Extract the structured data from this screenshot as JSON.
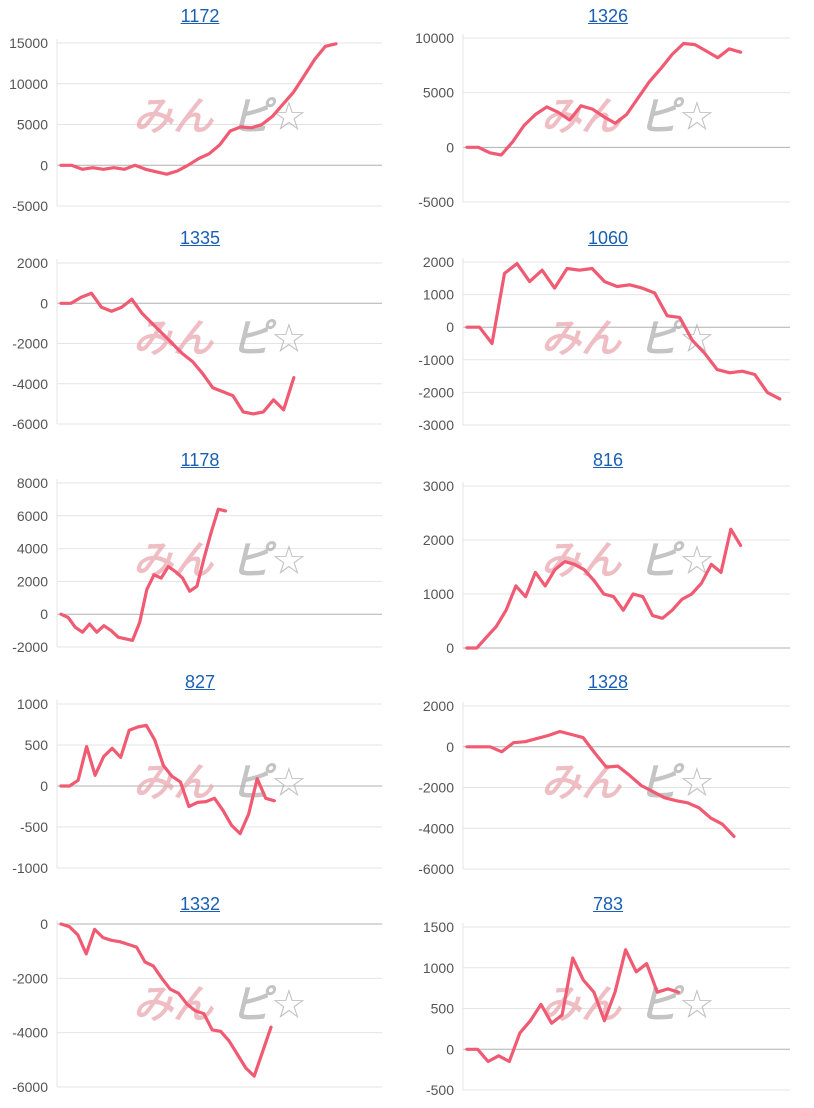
{
  "watermark_color_pink": "#e8a0a8",
  "watermark_color_gray": "#a8a8a8",
  "line_color": "#f05a72",
  "chart_data": [
    {
      "type": "line",
      "title": "1172",
      "yticks": [
        15000,
        10000,
        5000,
        0,
        -5000
      ],
      "ylim": [
        -5000,
        15000
      ],
      "values": [
        0,
        0,
        -500,
        -300,
        -500,
        -300,
        -500,
        0,
        -500,
        -800,
        -1100,
        -700,
        0,
        800,
        1400,
        2500,
        4200,
        4700,
        4600,
        5000,
        6000,
        7500,
        9000,
        11000,
        13000,
        14600,
        14900
      ]
    },
    {
      "type": "line",
      "title": "1326",
      "yticks": [
        10000,
        5000,
        0,
        -5000
      ],
      "ylim": [
        -5000,
        10000
      ],
      "values": [
        0,
        0,
        -500,
        -700,
        500,
        2000,
        3000,
        3700,
        3200,
        2500,
        3800,
        3500,
        2800,
        2200,
        3000,
        4500,
        6000,
        7200,
        8500,
        9500,
        9400,
        8800,
        8200,
        9000,
        8700
      ]
    },
    {
      "type": "line",
      "title": "1335",
      "yticks": [
        2000,
        0,
        -2000,
        -4000,
        -6000
      ],
      "ylim": [
        -6000,
        2000
      ],
      "values": [
        0,
        0,
        300,
        500,
        -200,
        -400,
        -200,
        200,
        -500,
        -1000,
        -1500,
        -2000,
        -2500,
        -2900,
        -3500,
        -4200,
        -4400,
        -4600,
        -5400,
        -5500,
        -5400,
        -4800,
        -5300,
        -3700
      ]
    },
    {
      "type": "line",
      "title": "1060",
      "yticks": [
        2000,
        1000,
        0,
        -1000,
        -2000,
        -3000
      ],
      "ylim": [
        -3000,
        2000
      ],
      "values": [
        0,
        0,
        -500,
        1650,
        1950,
        1400,
        1750,
        1200,
        1800,
        1750,
        1800,
        1400,
        1250,
        1300,
        1200,
        1050,
        350,
        300,
        -400,
        -800,
        -1300,
        -1400,
        -1350,
        -1450,
        -2000,
        -2200
      ]
    },
    {
      "type": "line",
      "title": "1178",
      "yticks": [
        8000,
        6000,
        4000,
        2000,
        0,
        -2000
      ],
      "ylim": [
        -2000,
        8000
      ],
      "values": [
        0,
        -200,
        -800,
        -1100,
        -600,
        -1100,
        -700,
        -1000,
        -1400,
        -1500,
        -1600,
        -500,
        1500,
        2400,
        2200,
        2900,
        2600,
        2200,
        1400,
        1700,
        3400,
        5000,
        6400,
        6300
      ]
    },
    {
      "type": "line",
      "title": "816",
      "yticks": [
        3000,
        2000,
        1000,
        0
      ],
      "ylim": [
        0,
        3000
      ],
      "values": [
        0,
        0,
        200,
        400,
        700,
        1150,
        950,
        1400,
        1150,
        1450,
        1600,
        1550,
        1450,
        1250,
        1000,
        950,
        700,
        1000,
        950,
        600,
        550,
        700,
        900,
        1000,
        1200,
        1550,
        1400,
        2200,
        1900
      ]
    },
    {
      "type": "line",
      "title": "827",
      "yticks": [
        1000,
        500,
        0,
        -500,
        -1000
      ],
      "ylim": [
        -1000,
        1000
      ],
      "values": [
        0,
        0,
        70,
        480,
        130,
        360,
        460,
        350,
        680,
        720,
        740,
        560,
        250,
        120,
        50,
        -250,
        -200,
        -190,
        -150,
        -300,
        -480,
        -580,
        -340,
        90,
        -150,
        -180
      ]
    },
    {
      "type": "line",
      "title": "1328",
      "yticks": [
        2000,
        0,
        -2000,
        -4000,
        -6000
      ],
      "ylim": [
        -6000,
        2000
      ],
      "values": [
        0,
        0,
        0,
        -250,
        200,
        250,
        400,
        550,
        750,
        600,
        450,
        -300,
        -1000,
        -950,
        -1400,
        -1900,
        -2200,
        -2500,
        -2650,
        -2750,
        -3000,
        -3500,
        -3800,
        -4400
      ]
    },
    {
      "type": "line",
      "title": "1332",
      "yticks": [
        0,
        -2000,
        -4000,
        -6000
      ],
      "ylim": [
        -6000,
        0
      ],
      "values": [
        0,
        -100,
        -400,
        -1100,
        -200,
        -500,
        -600,
        -650,
        -750,
        -850,
        -1400,
        -1550,
        -2000,
        -2400,
        -2550,
        -2950,
        -3200,
        -3300,
        -3900,
        -3950,
        -4300,
        -4800,
        -5300,
        -5600,
        -4700,
        -3800
      ]
    },
    {
      "type": "line",
      "title": "783",
      "yticks": [
        1500,
        1000,
        500,
        0,
        -500
      ],
      "ylim": [
        -500,
        1500
      ],
      "values": [
        0,
        0,
        -150,
        -80,
        -150,
        200,
        350,
        550,
        320,
        420,
        1120,
        850,
        700,
        350,
        700,
        1220,
        950,
        1050,
        700,
        740,
        700
      ]
    }
  ]
}
